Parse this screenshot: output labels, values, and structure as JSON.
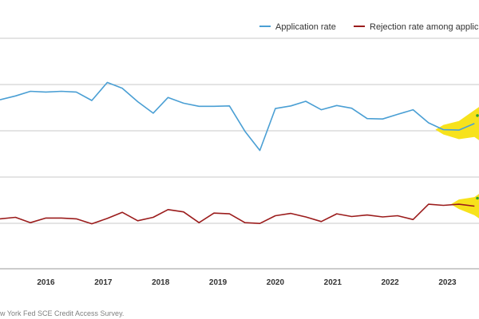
{
  "colors": {
    "application": "#4a9fd4",
    "rejection": "#9b1c1c",
    "grid": "#c8c8c8",
    "highlight": "#f7e21c",
    "marker": "#2ca02c"
  },
  "source": "w York Fed SCE Credit Access Survey.",
  "chart_data": {
    "type": "line",
    "x_tick_labels": [
      "2016",
      "2017",
      "2018",
      "2019",
      "2020",
      "2021",
      "2022",
      "2023"
    ],
    "grid": true,
    "legend_position": "top-right",
    "series": [
      {
        "name": "Application rate",
        "color_key": "application",
        "x": [
          2015.2,
          2015.47,
          2015.73,
          2016.0,
          2016.27,
          2016.53,
          2016.8,
          2017.07,
          2017.33,
          2017.6,
          2017.87,
          2018.13,
          2018.4,
          2018.67,
          2018.93,
          2019.2,
          2019.47,
          2019.73,
          2020.0,
          2020.27,
          2020.53,
          2020.8,
          2021.07,
          2021.33,
          2021.6,
          2021.87,
          2022.13,
          2022.4,
          2022.67,
          2022.93,
          2023.2,
          2023.47
        ],
        "values": [
          44.0,
          45.0,
          46.2,
          46.0,
          46.2,
          46.0,
          43.8,
          48.5,
          47.0,
          43.5,
          40.5,
          44.6,
          43.1,
          42.3,
          42.3,
          42.4,
          35.8,
          30.8,
          41.7,
          42.4,
          43.6,
          41.4,
          42.5,
          41.8,
          39.1,
          39.0,
          40.2,
          41.4,
          38.0,
          36.2,
          36.1,
          37.8
        ]
      },
      {
        "name": "Rejection rate among applic",
        "color_key": "rejection",
        "x": [
          2015.2,
          2015.47,
          2015.73,
          2016.0,
          2016.27,
          2016.53,
          2016.8,
          2017.07,
          2017.33,
          2017.6,
          2017.87,
          2018.13,
          2018.4,
          2018.67,
          2018.93,
          2019.2,
          2019.47,
          2019.73,
          2020.0,
          2020.27,
          2020.53,
          2020.8,
          2021.07,
          2021.33,
          2021.6,
          2021.87,
          2022.13,
          2022.4,
          2022.67,
          2022.93,
          2023.2,
          2023.47
        ],
        "values": [
          13.0,
          13.4,
          12.0,
          13.2,
          13.2,
          13.0,
          11.7,
          13.1,
          14.7,
          12.5,
          13.4,
          15.4,
          14.8,
          12.0,
          14.5,
          14.3,
          12.0,
          11.8,
          13.8,
          14.4,
          13.5,
          12.3,
          14.3,
          13.6,
          14.0,
          13.5,
          13.8,
          12.8,
          16.8,
          16.5,
          16.8,
          16.3
        ]
      }
    ],
    "highlights": [
      {
        "series_name": "Application rate",
        "from_x": 2022.93,
        "to_x": 2023.47
      },
      {
        "series_name": "Rejection rate among applic",
        "from_x": 2023.2,
        "to_x": 2023.47
      }
    ]
  }
}
